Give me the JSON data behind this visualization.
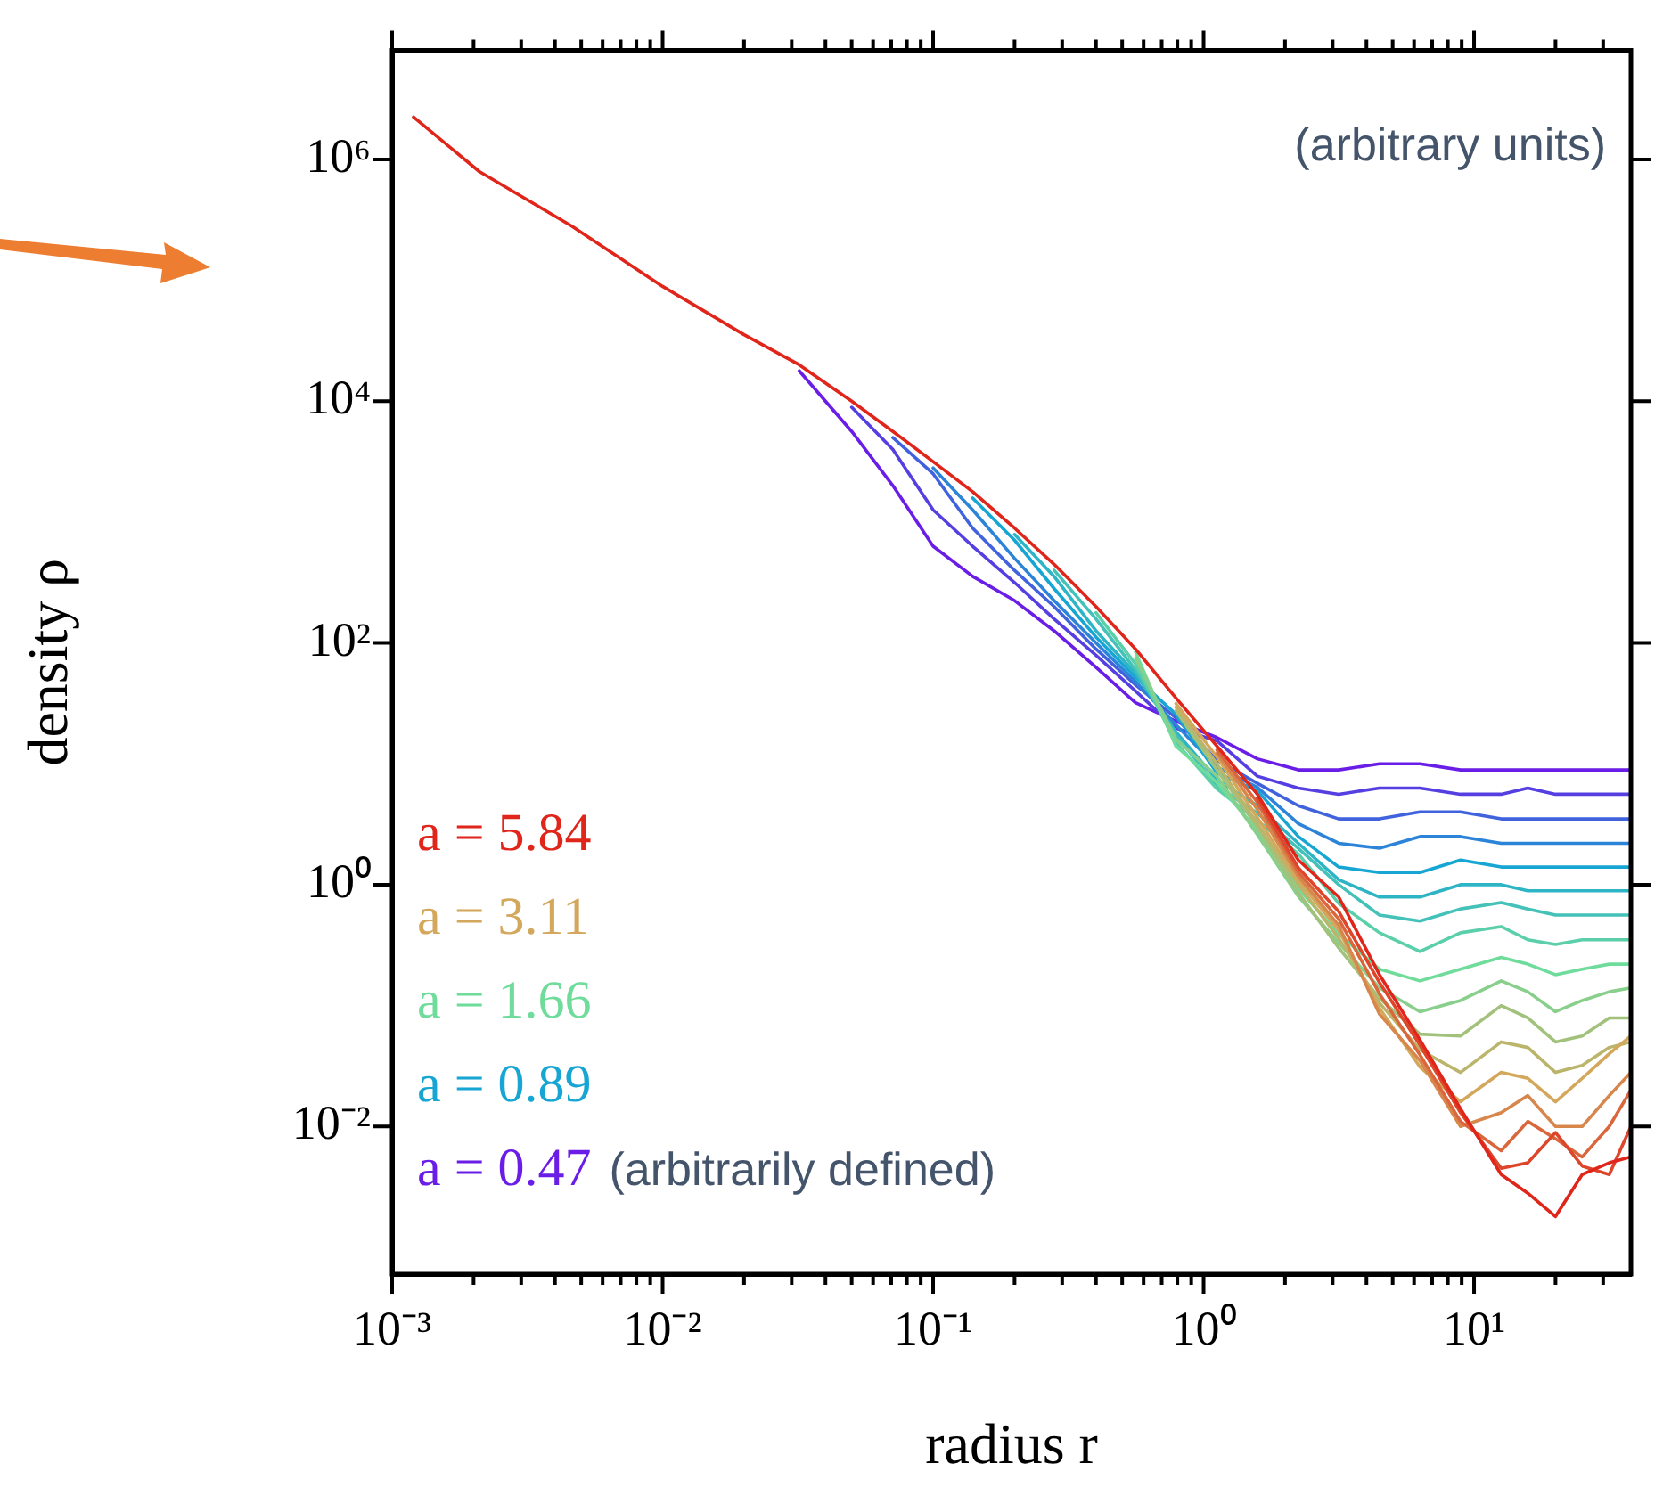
{
  "chart_data": {
    "type": "line",
    "xlabel": "radius r",
    "ylabel": "density ρ",
    "annotations": [
      "(arbitrary units)",
      "(arbitrarily defined)"
    ],
    "log": "xy",
    "grid": false,
    "legend": "bottom left",
    "marker": "none",
    "line_style": "solid",
    "xlim": [
      0.001,
      38
    ],
    "ylim": [
      0.0006,
      8000000
    ],
    "xticks": [
      {
        "value": 0.001,
        "label": "10⁻³"
      },
      {
        "value": 0.002,
        "label": null
      },
      {
        "value": 0.003,
        "label": null
      },
      {
        "value": 0.004,
        "label": null
      },
      {
        "value": 0.005,
        "label": null
      },
      {
        "value": 0.006,
        "label": null
      },
      {
        "value": 0.007,
        "label": null
      },
      {
        "value": 0.008,
        "label": null
      },
      {
        "value": 0.009,
        "label": null
      },
      {
        "value": 0.01,
        "label": "10⁻²"
      },
      {
        "value": 0.02,
        "label": null
      },
      {
        "value": 0.03,
        "label": null
      },
      {
        "value": 0.04,
        "label": null
      },
      {
        "value": 0.05,
        "label": null
      },
      {
        "value": 0.06,
        "label": null
      },
      {
        "value": 0.07,
        "label": null
      },
      {
        "value": 0.08,
        "label": null
      },
      {
        "value": 0.09,
        "label": null
      },
      {
        "value": 0.1,
        "label": "10⁻¹"
      },
      {
        "value": 0.2,
        "label": null
      },
      {
        "value": 0.3,
        "label": null
      },
      {
        "value": 0.4,
        "label": null
      },
      {
        "value": 0.5,
        "label": null
      },
      {
        "value": 0.6,
        "label": null
      },
      {
        "value": 0.7,
        "label": null
      },
      {
        "value": 0.8,
        "label": null
      },
      {
        "value": 0.9,
        "label": null
      },
      {
        "value": 1,
        "label": "10⁰"
      },
      {
        "value": 2,
        "label": null
      },
      {
        "value": 3,
        "label": null
      },
      {
        "value": 4,
        "label": null
      },
      {
        "value": 5,
        "label": null
      },
      {
        "value": 6,
        "label": null
      },
      {
        "value": 7,
        "label": null
      },
      {
        "value": 8,
        "label": null
      },
      {
        "value": 9,
        "label": null
      },
      {
        "value": 10,
        "label": "10¹"
      },
      {
        "value": 20,
        "label": null
      },
      {
        "value": 30,
        "label": null
      }
    ],
    "yticks": [
      {
        "value": 0.01,
        "label": "10⁻²"
      },
      {
        "value": 1,
        "label": "10⁰"
      },
      {
        "value": 100,
        "label": "10²"
      },
      {
        "value": 10000,
        "label": "10⁴"
      },
      {
        "value": 1000000,
        "label": "10⁶"
      }
    ],
    "x": [
      0.0012,
      0.0021,
      0.0046,
      0.01,
      0.02,
      0.032,
      0.05,
      0.071,
      0.1,
      0.14,
      0.2,
      0.28,
      0.4,
      0.56,
      0.79,
      1.12,
      1.58,
      2.24,
      3.16,
      4.47,
      6.31,
      8.91,
      12.6,
      15.8,
      20,
      25.1,
      31.6,
      38
    ],
    "series": [
      {
        "name": "a = 0.47",
        "color": "#6a1de6",
        "values": [
          null,
          null,
          null,
          null,
          null,
          17800,
          5620,
          2000,
          631,
          355,
          224,
          126,
          63,
          32,
          22.5,
          16.5,
          11,
          8.9,
          8.9,
          10,
          10,
          8.9,
          8.9,
          8.9,
          8.9,
          8.9,
          8.9,
          8.9
        ]
      },
      {
        "color": "#553fe1",
        "values": [
          null,
          null,
          null,
          null,
          null,
          null,
          8900,
          3980,
          1260,
          631,
          316,
          158,
          79,
          40,
          19.7,
          15.5,
          7.9,
          6.3,
          5.6,
          6.3,
          6.3,
          5.6,
          5.6,
          6.3,
          5.6,
          5.6,
          5.6,
          5.6
        ]
      },
      {
        "color": "#4162dd",
        "values": [
          null,
          null,
          null,
          null,
          null,
          null,
          null,
          5000,
          2510,
          891,
          398,
          200,
          89,
          45,
          24,
          10.7,
          6.9,
          4.5,
          3.5,
          3.5,
          4.0,
          4.0,
          3.5,
          3.5,
          3.5,
          3.5,
          3.5,
          3.5
        ]
      },
      {
        "color": "#2c84d8",
        "values": [
          null,
          null,
          null,
          null,
          null,
          null,
          null,
          null,
          2800,
          1260,
          501,
          224,
          100,
          48,
          21,
          9.4,
          6.4,
          3.2,
          2.2,
          2.0,
          2.5,
          2.5,
          2.2,
          2.2,
          2.2,
          2.2,
          2.2,
          2.2
        ]
      },
      {
        "name": "a = 0.89",
        "color": "#17a6d3",
        "values": [
          null,
          null,
          null,
          null,
          null,
          null,
          null,
          null,
          null,
          1580,
          708,
          282,
          112,
          52,
          25.7,
          8.4,
          6.0,
          2.5,
          1.4,
          1.26,
          1.26,
          1.6,
          1.4,
          1.4,
          1.4,
          1.4,
          1.4,
          1.4
        ]
      },
      {
        "color": "#2db4c5",
        "values": [
          null,
          null,
          null,
          null,
          null,
          null,
          null,
          null,
          null,
          null,
          790,
          355,
          126,
          56,
          18.4,
          7.4,
          4.5,
          2.2,
          1.1,
          0.79,
          0.79,
          1.0,
          1.0,
          0.89,
          0.89,
          0.89,
          0.89,
          0.89
        ]
      },
      {
        "color": "#44c1b8",
        "values": [
          null,
          null,
          null,
          null,
          null,
          null,
          null,
          null,
          null,
          null,
          null,
          400,
          158,
          60,
          17.2,
          6.6,
          3.9,
          2.0,
          1.0,
          0.56,
          0.5,
          0.63,
          0.71,
          0.63,
          0.56,
          0.56,
          0.56,
          0.56
        ]
      },
      {
        "color": "#5acfaa",
        "values": [
          null,
          null,
          null,
          null,
          null,
          null,
          null,
          null,
          null,
          null,
          null,
          null,
          178,
          67,
          15,
          6.2,
          3.4,
          1.8,
          0.7,
          0.4,
          0.28,
          0.4,
          0.45,
          0.35,
          0.32,
          0.35,
          0.35,
          0.35
        ]
      },
      {
        "name": "a = 1.66",
        "color": "#70dc9c",
        "values": [
          null,
          null,
          null,
          null,
          null,
          null,
          null,
          null,
          null,
          null,
          null,
          null,
          null,
          84,
          14,
          7.0,
          2.8,
          0.93,
          0.39,
          0.2,
          0.16,
          0.2,
          0.25,
          0.22,
          0.18,
          0.2,
          0.22,
          0.22
        ]
      },
      {
        "color": "#89cf8c",
        "values": [
          null,
          null,
          null,
          null,
          null,
          null,
          null,
          null,
          null,
          null,
          null,
          null,
          null,
          75,
          16,
          7.9,
          2.6,
          0.8,
          0.33,
          0.14,
          0.089,
          0.11,
          0.16,
          0.13,
          0.089,
          0.11,
          0.13,
          0.14
        ]
      },
      {
        "color": "#a2c27c",
        "values": [
          null,
          null,
          null,
          null,
          null,
          null,
          null,
          null,
          null,
          null,
          null,
          null,
          null,
          null,
          27.5,
          8.9,
          3.0,
          0.86,
          0.3,
          0.115,
          0.058,
          0.056,
          0.1,
          0.079,
          0.05,
          0.056,
          0.079,
          0.079
        ]
      },
      {
        "color": "#bbb56c",
        "values": [
          null,
          null,
          null,
          null,
          null,
          null,
          null,
          null,
          null,
          null,
          null,
          null,
          null,
          null,
          29.4,
          10,
          3.2,
          1.0,
          0.36,
          0.105,
          0.043,
          0.028,
          0.05,
          0.045,
          0.028,
          0.032,
          0.045,
          0.05
        ]
      },
      {
        "name": "a = 3.11",
        "color": "#d4a85c",
        "values": [
          null,
          null,
          null,
          null,
          null,
          null,
          null,
          null,
          null,
          null,
          null,
          null,
          null,
          null,
          31.5,
          11.4,
          3.6,
          1.08,
          0.42,
          0.095,
          0.031,
          0.016,
          0.028,
          0.025,
          0.016,
          0.025,
          0.04,
          0.056
        ]
      },
      {
        "color": "#d7874c",
        "values": [
          null,
          null,
          null,
          null,
          null,
          null,
          null,
          null,
          null,
          null,
          null,
          null,
          null,
          null,
          null,
          12.2,
          4.2,
          1.17,
          0.46,
          0.085,
          0.035,
          0.01,
          0.013,
          0.018,
          0.01,
          0.01,
          0.018,
          0.028
        ]
      },
      {
        "color": "#da673c",
        "values": [
          null,
          null,
          null,
          null,
          null,
          null,
          null,
          null,
          null,
          null,
          null,
          null,
          null,
          null,
          null,
          13,
          4.8,
          1.27,
          0.52,
          0.125,
          0.039,
          0.011,
          0.0063,
          0.011,
          0.0079,
          0.0056,
          0.01,
          0.02
        ]
      },
      {
        "color": "#dd462b",
        "values": [
          null,
          null,
          null,
          null,
          null,
          null,
          null,
          null,
          null,
          null,
          null,
          null,
          null,
          null,
          null,
          null,
          5.2,
          1.38,
          0.6,
          0.155,
          0.047,
          0.013,
          0.0045,
          0.005,
          0.0089,
          0.0047,
          0.004,
          0.01
        ]
      },
      {
        "name": "a = 5.84",
        "color": "#e0251b",
        "values": [
          2240000,
          794000,
          282000,
          89100,
          35500,
          20000,
          10000,
          5620,
          3160,
          1780,
          891,
          447,
          200,
          89,
          35,
          14,
          5.6,
          1.6,
          0.79,
          0.18,
          0.052,
          0.014,
          0.004,
          0.0028,
          0.0018,
          0.004,
          0.005,
          0.0056
        ]
      }
    ]
  }
}
